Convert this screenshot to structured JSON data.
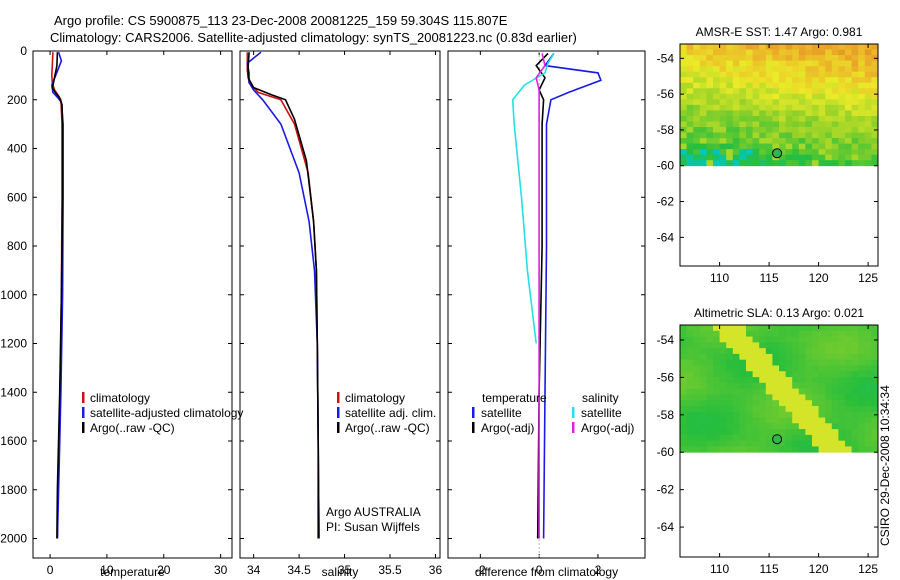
{
  "title": {
    "line1": "Argo profile: CS 5900875_113 23-Dec-2008 20081225_159 59.304S 115.807E",
    "line2": "Climatology: CARS2006. Satellite-adjusted climatology: synTS_20081223.nc (0.83d earlier)"
  },
  "footer": "CSIRO 29-Dec-2008 10:34:34",
  "colors": {
    "red": "#cc1111",
    "blue": "#1a1ae6",
    "black": "#000000",
    "cyan": "#22e0e8",
    "magenta": "#dd22dd"
  },
  "chart_data": [
    {
      "type": "line",
      "name": "temperature",
      "xlabel": "temperature",
      "xlim": [
        -3,
        32
      ],
      "xticks": [
        0,
        10,
        20,
        30
      ],
      "xtick_labels": [
        "0",
        "10",
        "20",
        "30"
      ],
      "ylim": [
        2080,
        0
      ],
      "yticks": [
        0,
        200,
        400,
        600,
        800,
        1000,
        1200,
        1400,
        1600,
        1800,
        2000
      ],
      "ytick_labels": [
        "0",
        "200",
        "400",
        "600",
        "800",
        "1000",
        "1200",
        "1400",
        "1600",
        "1800",
        "2000"
      ],
      "legend": {
        "items": [
          {
            "label": "climatology",
            "color": "red"
          },
          {
            "label": "satellite-adjusted climatology",
            "color": "blue"
          },
          {
            "label": "Argo(..raw -QC)",
            "color": "black"
          }
        ]
      },
      "series": [
        {
          "name": "climatology",
          "color": "red",
          "points": [
            [
              0.5,
              5
            ],
            [
              0.4,
              60
            ],
            [
              0.3,
              100
            ],
            [
              0.4,
              130
            ],
            [
              0.8,
              160
            ],
            [
              1.4,
              180
            ],
            [
              1.9,
              200
            ],
            [
              2.1,
              300
            ],
            [
              2.1,
              600
            ],
            [
              2.0,
              1000
            ],
            [
              1.8,
              1400
            ],
            [
              1.4,
              1800
            ],
            [
              1.3,
              2000
            ]
          ]
        },
        {
          "name": "satellite-adjusted climatology",
          "color": "blue",
          "points": [
            [
              1.5,
              5
            ],
            [
              2.0,
              40
            ],
            [
              1.0,
              100
            ],
            [
              0.3,
              140
            ],
            [
              0.5,
              170
            ],
            [
              1.3,
              190
            ],
            [
              2.0,
              210
            ],
            [
              2.3,
              300
            ],
            [
              2.3,
              600
            ],
            [
              2.2,
              1000
            ],
            [
              1.9,
              1400
            ],
            [
              1.5,
              1800
            ],
            [
              1.3,
              2000
            ]
          ]
        },
        {
          "name": "Argo(..raw -QC)",
          "color": "black",
          "points": [
            [
              1.3,
              5
            ],
            [
              1.2,
              60
            ],
            [
              0.6,
              130
            ],
            [
              0.4,
              150
            ],
            [
              0.9,
              170
            ],
            [
              1.6,
              190
            ],
            [
              2.1,
              220
            ],
            [
              2.2,
              300
            ],
            [
              2.2,
              600
            ],
            [
              2.0,
              1000
            ],
            [
              1.7,
              1400
            ],
            [
              1.3,
              1800
            ],
            [
              1.2,
              2000
            ]
          ]
        }
      ]
    },
    {
      "type": "line",
      "name": "salinity",
      "xlabel": "salinity",
      "xlim": [
        33.85,
        36.05
      ],
      "xticks": [
        34,
        34.5,
        35,
        35.5,
        36
      ],
      "xtick_labels": [
        "34",
        "34.5",
        "35",
        "35.5",
        "36"
      ],
      "ylim": [
        2080,
        0
      ],
      "yticks": [
        0,
        200,
        400,
        600,
        800,
        1000,
        1200,
        1400,
        1600,
        1800,
        2000
      ],
      "legend": {
        "items": [
          {
            "label": "climatology",
            "color": "red"
          },
          {
            "label": "satellite adj. clim.",
            "color": "blue"
          },
          {
            "label": "Argo(..raw -QC)",
            "color": "black"
          }
        ]
      },
      "annotation": [
        "Argo AUSTRALIA",
        "PI: Susan Wijffels"
      ],
      "series": [
        {
          "name": "climatology",
          "color": "red",
          "points": [
            [
              33.93,
              5
            ],
            [
              33.93,
              80
            ],
            [
              33.95,
              130
            ],
            [
              34.05,
              170
            ],
            [
              34.3,
              200
            ],
            [
              34.45,
              300
            ],
            [
              34.6,
              500
            ],
            [
              34.66,
              700
            ],
            [
              34.69,
              900
            ],
            [
              34.7,
              1200
            ],
            [
              34.71,
              1600
            ],
            [
              34.72,
              2000
            ]
          ]
        },
        {
          "name": "satellite adj. clim.",
          "color": "blue",
          "points": [
            [
              34.08,
              5
            ],
            [
              33.93,
              50
            ],
            [
              33.95,
              90
            ],
            [
              33.95,
              130
            ],
            [
              34.0,
              160
            ],
            [
              34.1,
              200
            ],
            [
              34.3,
              300
            ],
            [
              34.5,
              500
            ],
            [
              34.61,
              700
            ],
            [
              34.67,
              900
            ],
            [
              34.7,
              1200
            ],
            [
              34.71,
              1600
            ],
            [
              34.72,
              2000
            ]
          ]
        },
        {
          "name": "Argo(..raw -QC)",
          "color": "black",
          "points": [
            [
              33.95,
              5
            ],
            [
              33.94,
              60
            ],
            [
              33.94,
              110
            ],
            [
              34.0,
              150
            ],
            [
              34.2,
              180
            ],
            [
              34.35,
              200
            ],
            [
              34.45,
              280
            ],
            [
              34.58,
              450
            ],
            [
              34.66,
              700
            ],
            [
              34.69,
              900
            ],
            [
              34.7,
              1200
            ],
            [
              34.71,
              1600
            ],
            [
              34.71,
              2000
            ]
          ]
        }
      ]
    },
    {
      "type": "line",
      "name": "difference",
      "xlabel": "difference from climatology",
      "xlim": [
        -3.1,
        3.6
      ],
      "xticks": [
        -2,
        0,
        2
      ],
      "xtick_labels": [
        "-2",
        "0",
        "2"
      ],
      "ylim": [
        2080,
        0
      ],
      "yticks": [
        0,
        200,
        400,
        600,
        800,
        1000,
        1200,
        1400,
        1600,
        1800,
        2000
      ],
      "legend": {
        "headers": [
          "temperature",
          "salinity"
        ],
        "items": [
          {
            "label": "satellite",
            "color": "blue"
          },
          {
            "label": "Argo(-adj)",
            "color": "black"
          },
          {
            "label": "satellite",
            "color": "cyan"
          },
          {
            "label": "Argo(-adj)",
            "color": "magenta"
          }
        ]
      },
      "series": [
        {
          "name": "temperature satellite",
          "color": "blue",
          "points": [
            [
              0.5,
              10
            ],
            [
              0.2,
              60
            ],
            [
              2.0,
              90
            ],
            [
              2.1,
              120
            ],
            [
              1.0,
              170
            ],
            [
              0.4,
              200
            ],
            [
              0.25,
              300
            ],
            [
              0.25,
              800
            ],
            [
              0.2,
              1400
            ],
            [
              0.15,
              2000
            ]
          ]
        },
        {
          "name": "temperature Argo(-adj)",
          "color": "black",
          "points": [
            [
              0.3,
              10
            ],
            [
              -0.1,
              60
            ],
            [
              0.2,
              110
            ],
            [
              0.0,
              160
            ],
            [
              0.15,
              200
            ],
            [
              0.1,
              300
            ],
            [
              0.1,
              800
            ],
            [
              0.0,
              1400
            ],
            [
              -0.05,
              2000
            ]
          ]
        },
        {
          "name": "salinity satellite",
          "color": "cyan",
          "points": [
            [
              0.5,
              10
            ],
            [
              0.3,
              50
            ],
            [
              0.2,
              90
            ],
            [
              -0.5,
              140
            ],
            [
              -0.9,
              200
            ],
            [
              -0.85,
              300
            ],
            [
              -0.6,
              600
            ],
            [
              -0.4,
              900
            ],
            [
              -0.1,
              1200
            ]
          ]
        },
        {
          "name": "salinity Argo(-adj)",
          "color": "magenta",
          "points": [
            [
              0.1,
              10
            ],
            [
              0.2,
              60
            ],
            [
              -0.1,
              110
            ],
            [
              0.0,
              160
            ],
            [
              0.0,
              300
            ],
            [
              0.0,
              800
            ],
            [
              0.0,
              1400
            ],
            [
              0.0,
              2000
            ]
          ]
        }
      ]
    },
    {
      "type": "heatmap",
      "name": "sst-map",
      "title": "AMSR-E SST: 1.47 Argo: 0.981",
      "xlim": [
        106,
        126
      ],
      "ylim": [
        -65.6,
        -53.2
      ],
      "xticks": [
        110,
        115,
        120,
        125
      ],
      "yticks": [
        -54,
        -56,
        -58,
        -60,
        -62,
        -64
      ],
      "data_bounds": {
        "lat_top": -53.2,
        "lat_bottom": -60.0
      },
      "argo_position": {
        "lon": 115.807,
        "lat": -59.304
      }
    },
    {
      "type": "heatmap",
      "name": "sla-map",
      "title": "Altimetric SLA: 0.13 Argo: 0.021",
      "xlim": [
        106,
        126
      ],
      "ylim": [
        -65.6,
        -53.2
      ],
      "xticks": [
        110,
        115,
        120,
        125
      ],
      "yticks": [
        -54,
        -56,
        -58,
        -60,
        -62,
        -64
      ],
      "data_bounds": {
        "lat_top": -53.2,
        "lat_bottom": -60.0
      },
      "argo_position": {
        "lon": 115.807,
        "lat": -59.304
      }
    }
  ]
}
